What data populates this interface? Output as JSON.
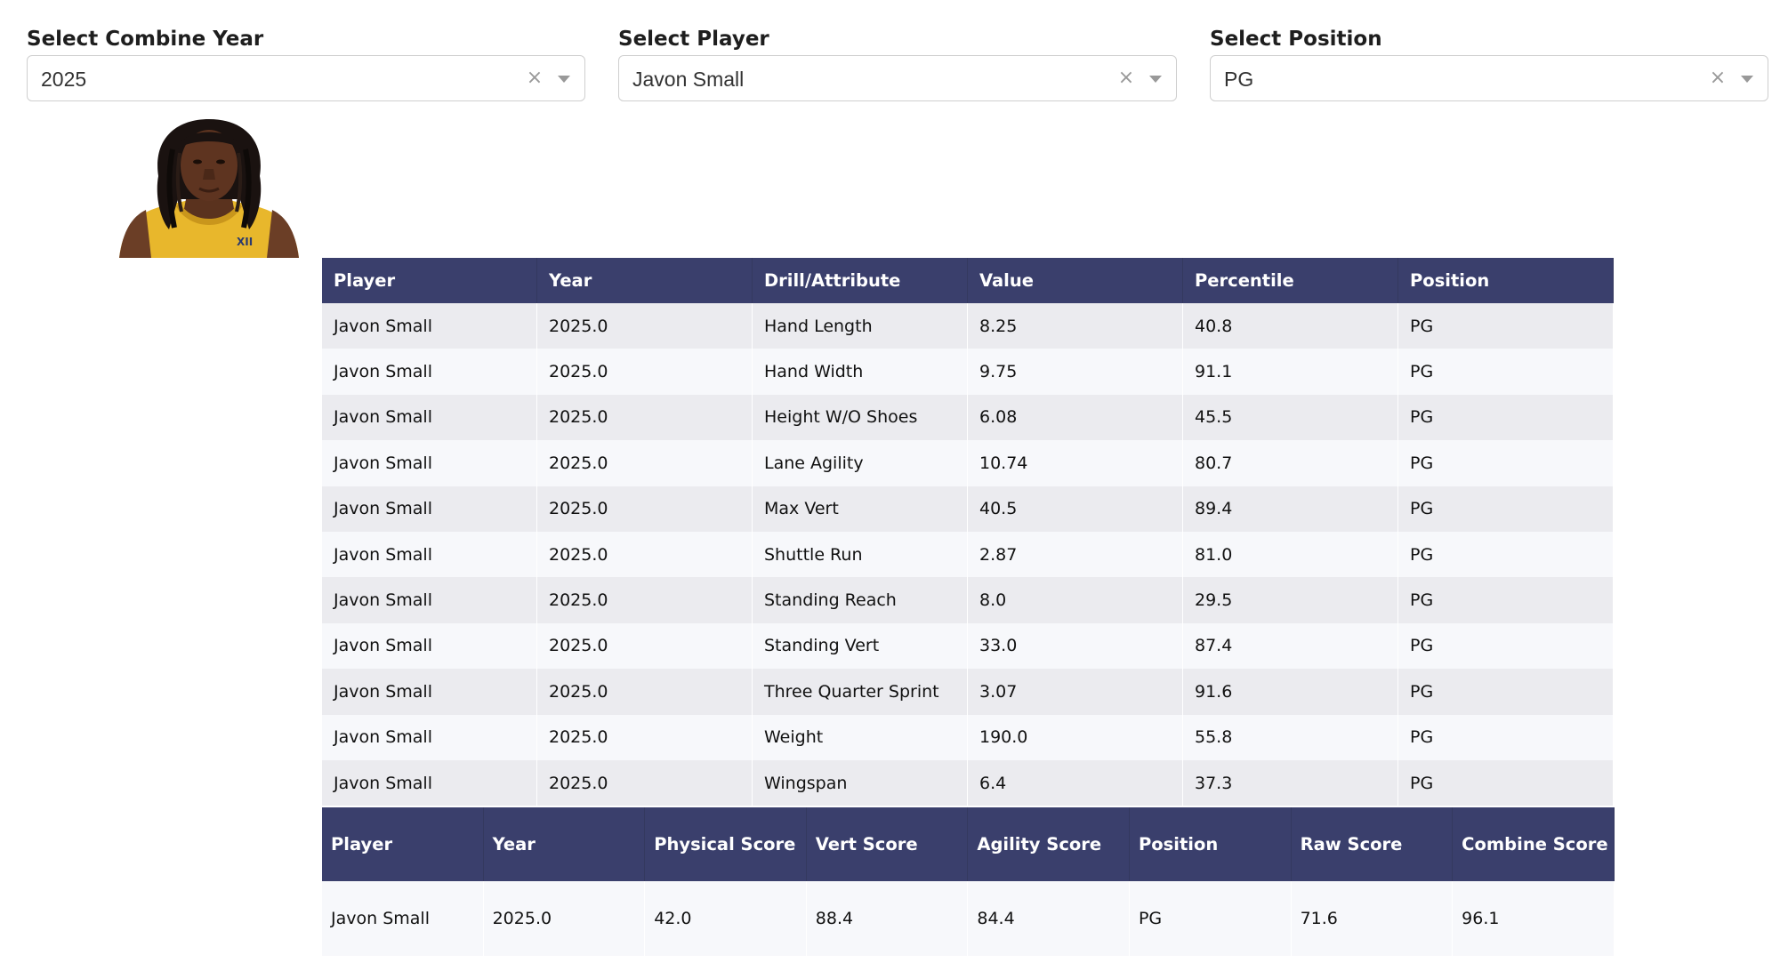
{
  "filters": [
    {
      "label": "Select Combine Year",
      "value": "2025"
    },
    {
      "label": "Select Player",
      "value": "Javon Small"
    },
    {
      "label": "Select Position",
      "value": "PG"
    }
  ],
  "colors": {
    "header_bg": "#3a3f6c",
    "row_odd": "#ebebef",
    "row_even": "#f7f8fb",
    "jersey": "#e8b72c"
  },
  "drill_table": {
    "columns": [
      "Player",
      "Year",
      "Drill/Attribute",
      "Value",
      "Percentile",
      "Position"
    ],
    "rows": [
      [
        "Javon Small",
        "2025.0",
        "Hand Length",
        "8.25",
        "40.8",
        "PG"
      ],
      [
        "Javon Small",
        "2025.0",
        "Hand Width",
        "9.75",
        "91.1",
        "PG"
      ],
      [
        "Javon Small",
        "2025.0",
        "Height W/O Shoes",
        "6.08",
        "45.5",
        "PG"
      ],
      [
        "Javon Small",
        "2025.0",
        "Lane Agility",
        "10.74",
        "80.7",
        "PG"
      ],
      [
        "Javon Small",
        "2025.0",
        "Max Vert",
        "40.5",
        "89.4",
        "PG"
      ],
      [
        "Javon Small",
        "2025.0",
        "Shuttle Run",
        "2.87",
        "81.0",
        "PG"
      ],
      [
        "Javon Small",
        "2025.0",
        "Standing Reach",
        "8.0",
        "29.5",
        "PG"
      ],
      [
        "Javon Small",
        "2025.0",
        "Standing Vert",
        "33.0",
        "87.4",
        "PG"
      ],
      [
        "Javon Small",
        "2025.0",
        "Three Quarter Sprint",
        "3.07",
        "91.6",
        "PG"
      ],
      [
        "Javon Small",
        "2025.0",
        "Weight",
        "190.0",
        "55.8",
        "PG"
      ],
      [
        "Javon Small",
        "2025.0",
        "Wingspan",
        "6.4",
        "37.3",
        "PG"
      ]
    ]
  },
  "score_table": {
    "columns": [
      "Player",
      "Year",
      "Physical Score",
      "Vert Score",
      "Agility Score",
      "Position",
      "Raw Score",
      "Combine Score"
    ],
    "rows": [
      [
        "Javon Small",
        "2025.0",
        "42.0",
        "88.4",
        "84.4",
        "PG",
        "71.6",
        "96.1"
      ]
    ]
  }
}
